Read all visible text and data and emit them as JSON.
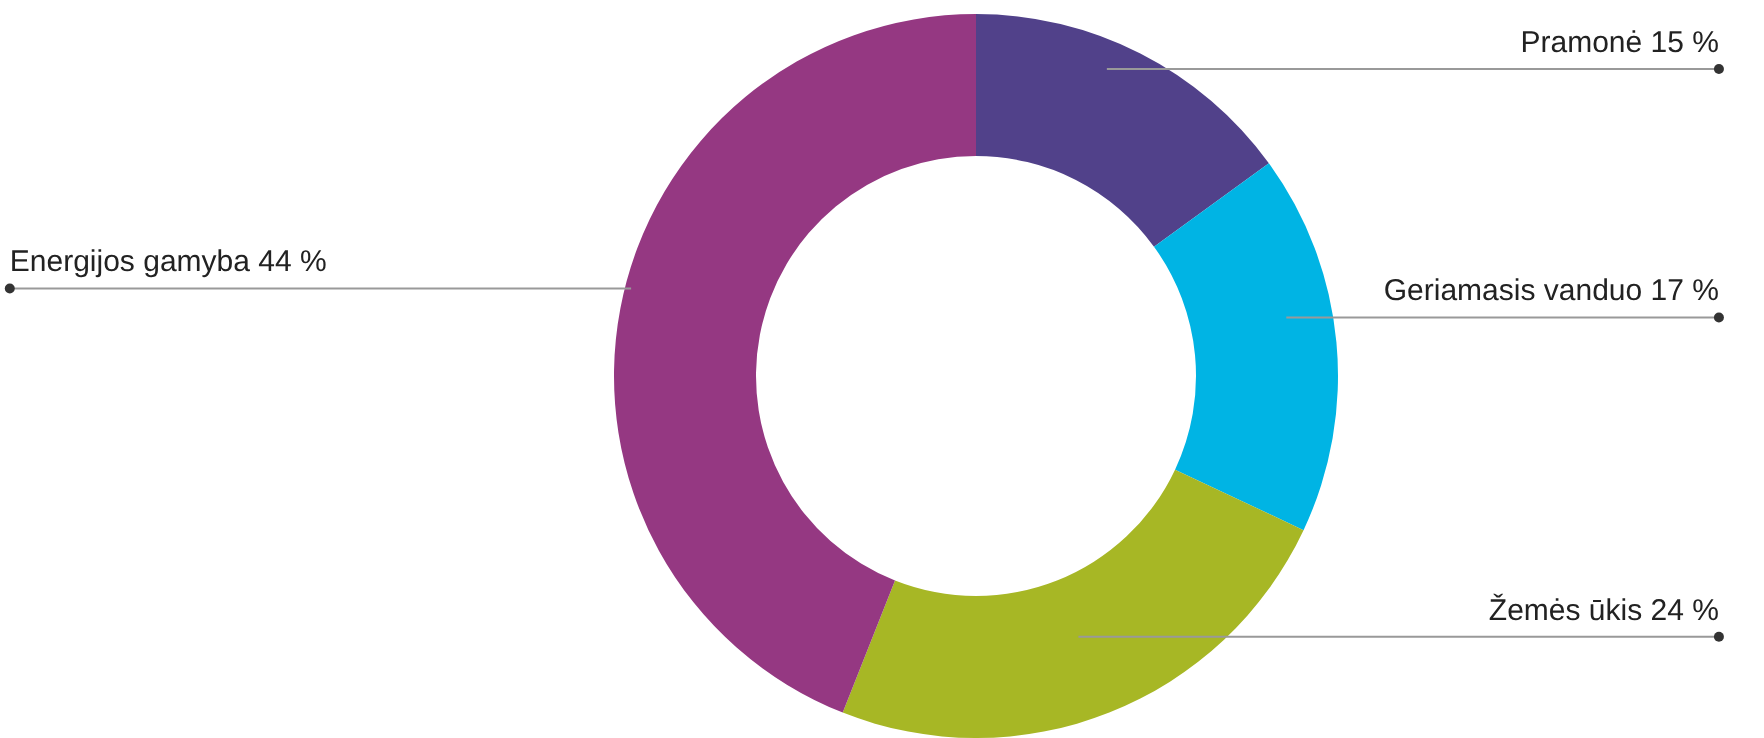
{
  "chart_data": {
    "type": "donut",
    "categories": [
      "Pramonė",
      "Geriamasis vanduo",
      "Žemės ūkis",
      "Energijos gamyba"
    ],
    "values": [
      15,
      17,
      24,
      44
    ],
    "value_labels": [
      "15 %",
      "17 %",
      "24 %",
      "44 %"
    ],
    "colors": [
      "#51418a",
      "#00b4e4",
      "#a7b725",
      "#953882"
    ]
  }
}
